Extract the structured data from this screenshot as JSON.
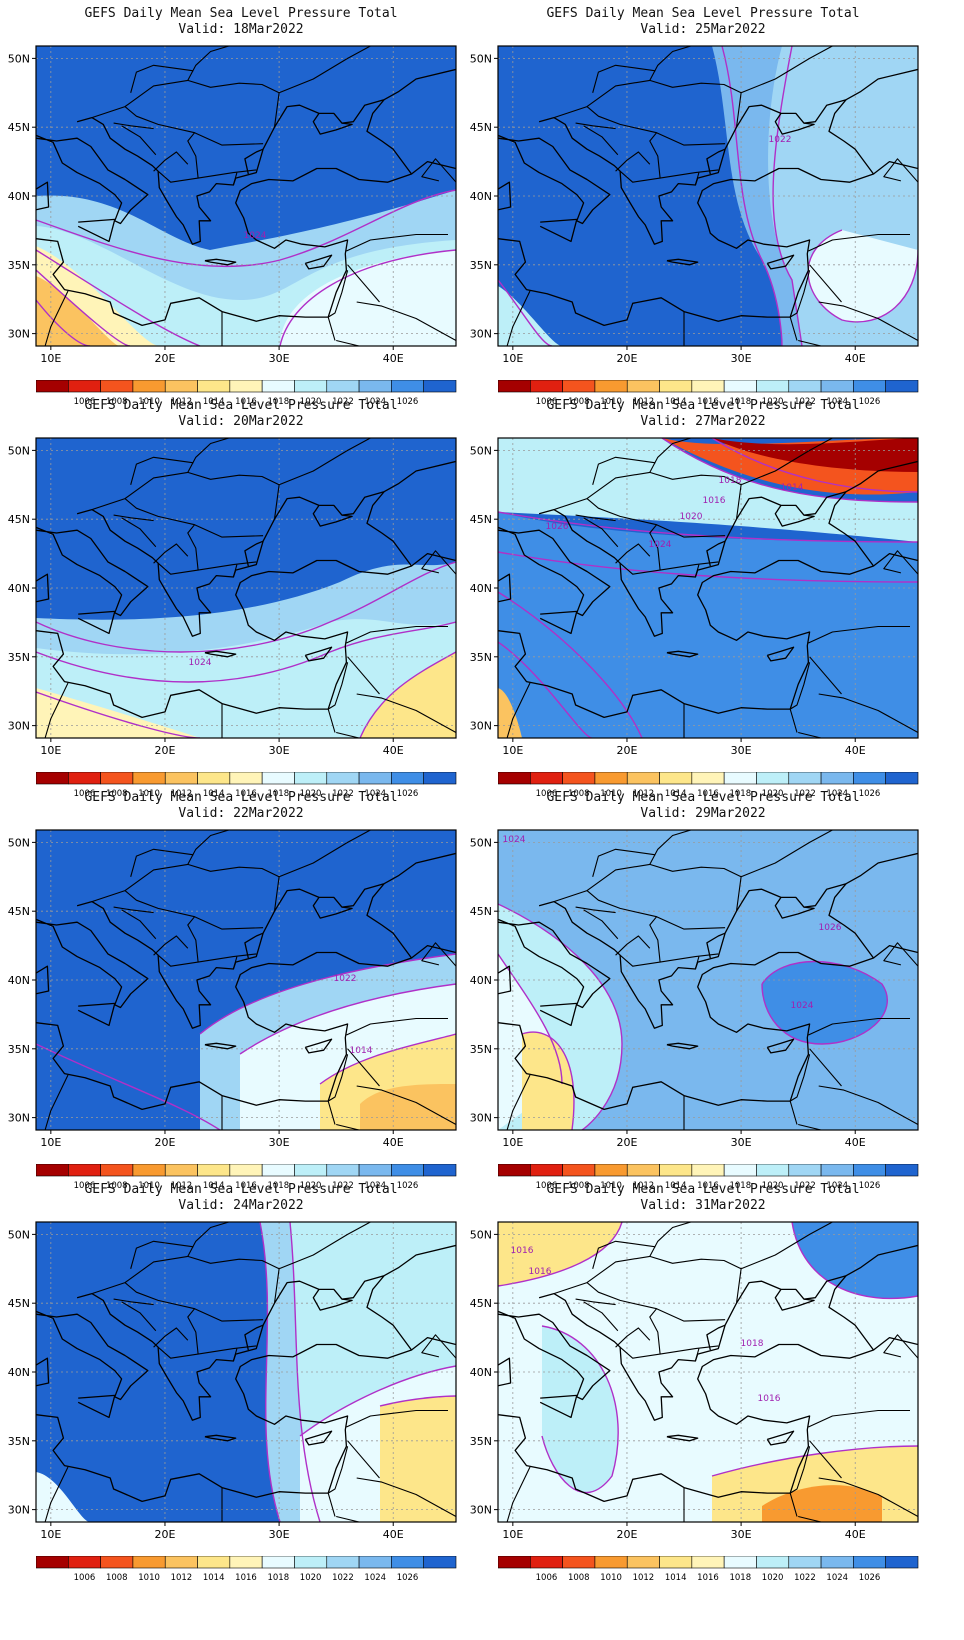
{
  "panel_title": "GEFS Daily Mean Sea Level Pressure Total",
  "panels": [
    {
      "valid": "Valid:  18Mar2022",
      "contour_labels": [
        "1024"
      ],
      "scheme": 0
    },
    {
      "valid": "Valid:  25Mar2022",
      "contour_labels": [
        "1022"
      ],
      "scheme": 1
    },
    {
      "valid": "Valid:  20Mar2022",
      "contour_labels": [
        "1024"
      ],
      "scheme": 2
    },
    {
      "valid": "Valid:  27Mar2022",
      "contour_labels": [
        "1018",
        "1016",
        "1014",
        "1020",
        "1026",
        "1024"
      ],
      "scheme": 3
    },
    {
      "valid": "Valid:  22Mar2022",
      "contour_labels": [
        "1022",
        "1014"
      ],
      "scheme": 4
    },
    {
      "valid": "Valid:  29Mar2022",
      "contour_labels": [
        "1024",
        "1026",
        "1024"
      ],
      "scheme": 5
    },
    {
      "valid": "Valid:  24Mar2022",
      "contour_labels": [],
      "scheme": 6
    },
    {
      "valid": "Valid:  31Mar2022",
      "contour_labels": [
        "1016",
        "1016",
        "1018",
        "1016"
      ],
      "scheme": 7
    }
  ],
  "lat_labels": [
    "50N",
    "45N",
    "40N",
    "35N",
    "30N"
  ],
  "lon_labels": [
    "10E",
    "20E",
    "30E",
    "40E"
  ],
  "colorbar": {
    "labels": [
      "1006",
      "1008",
      "1010",
      "1012",
      "1014",
      "1016",
      "1018",
      "1020",
      "1022",
      "1024",
      "1026"
    ],
    "colors": [
      "#a50000",
      "#e02010",
      "#f4541e",
      "#f89a30",
      "#fbc360",
      "#fde68a",
      "#fff4b8",
      "#e8fbff",
      "#bdeff8",
      "#a0d6f4",
      "#7ab8ee",
      "#3f8ee6",
      "#1f64cf"
    ]
  },
  "colors": {
    "contour": "#b030c8",
    "contour_label": "#a020b0",
    "coast": "#000000",
    "grid": "#9a9a9a"
  }
}
